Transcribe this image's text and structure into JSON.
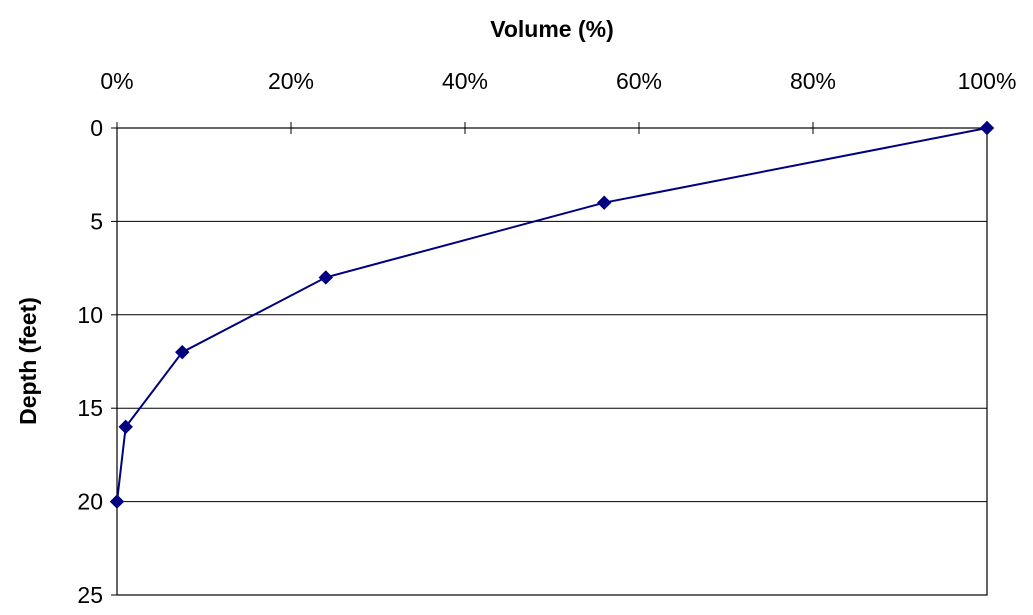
{
  "chart_data": {
    "type": "scatter",
    "title": "",
    "xlabel": "Volume (%)",
    "ylabel": "Depth (feet)",
    "x_axis_position": "top",
    "y_axis_reversed": true,
    "xlim": [
      0,
      100
    ],
    "ylim": [
      0,
      25
    ],
    "x_ticks": [
      0,
      20,
      40,
      60,
      80,
      100
    ],
    "x_tick_labels": [
      "0%",
      "20%",
      "40%",
      "60%",
      "80%",
      "100%"
    ],
    "y_ticks": [
      0,
      5,
      10,
      15,
      20,
      25
    ],
    "y_tick_labels": [
      "0",
      "5",
      "10",
      "15",
      "20",
      "25"
    ],
    "gridlines": "horizontal",
    "legend": "none",
    "series": [
      {
        "marker": "diamond",
        "line": "straight",
        "color": "#000080",
        "points": [
          {
            "x": 100,
            "y": 0
          },
          {
            "x": 56,
            "y": 4
          },
          {
            "x": 24,
            "y": 8
          },
          {
            "x": 7.5,
            "y": 12
          },
          {
            "x": 1,
            "y": 16
          },
          {
            "x": 0,
            "y": 20
          }
        ]
      }
    ]
  }
}
